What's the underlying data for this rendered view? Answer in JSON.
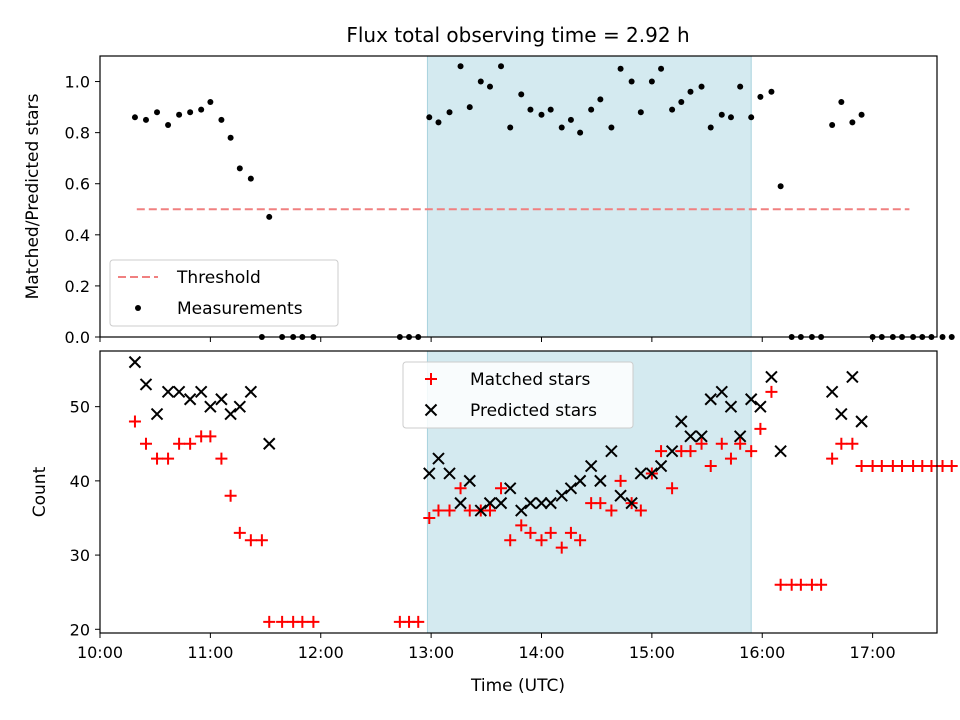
{
  "chart_data": {
    "type": "scatter",
    "title": "Flux total observing time = 2.92 h",
    "xlabel": "Time (UTC)",
    "x_ticks": [
      "10:00",
      "11:00",
      "12:00",
      "13:00",
      "14:00",
      "15:00",
      "16:00",
      "17:00"
    ],
    "x_range": [
      "10:00",
      "17:35"
    ],
    "observing_window": {
      "start": "12:58",
      "end": "15:54",
      "color": "#d4eaf0"
    },
    "panels": [
      {
        "ylabel": "Matched/Predicted stars",
        "ylim": [
          0,
          1.1
        ],
        "y_ticks": [
          "0.0",
          "0.2",
          "0.4",
          "0.6",
          "0.8",
          "1.0"
        ],
        "legend_position": "lower-left",
        "series": [
          {
            "name": "Threshold",
            "style": "dashed-line",
            "color": "#f08080",
            "points": [
              [
                "10:20",
                0.5
              ],
              [
                "17:20",
                0.5
              ]
            ]
          },
          {
            "name": "Measurements",
            "style": "dot",
            "color": "#000000",
            "points": [
              [
                "10:19",
                0.86
              ],
              [
                "10:25",
                0.85
              ],
              [
                "10:31",
                0.88
              ],
              [
                "10:37",
                0.83
              ],
              [
                "10:43",
                0.87
              ],
              [
                "10:49",
                0.88
              ],
              [
                "10:55",
                0.89
              ],
              [
                "11:00",
                0.92
              ],
              [
                "11:06",
                0.85
              ],
              [
                "11:11",
                0.78
              ],
              [
                "11:16",
                0.66
              ],
              [
                "11:22",
                0.62
              ],
              [
                "11:28",
                0.0
              ],
              [
                "11:32",
                0.47
              ],
              [
                "11:39",
                0.0
              ],
              [
                "11:45",
                0.0
              ],
              [
                "11:50",
                0.0
              ],
              [
                "11:56",
                0.0
              ],
              [
                "12:43",
                0.0
              ],
              [
                "12:48",
                0.0
              ],
              [
                "12:53",
                0.0
              ],
              [
                "12:59",
                0.86
              ],
              [
                "13:04",
                0.84
              ],
              [
                "13:10",
                0.88
              ],
              [
                "13:16",
                1.06
              ],
              [
                "13:21",
                0.9
              ],
              [
                "13:27",
                1.0
              ],
              [
                "13:32",
                0.98
              ],
              [
                "13:38",
                1.06
              ],
              [
                "13:43",
                0.82
              ],
              [
                "13:49",
                0.95
              ],
              [
                "13:54",
                0.89
              ],
              [
                "14:00",
                0.87
              ],
              [
                "14:05",
                0.89
              ],
              [
                "14:11",
                0.82
              ],
              [
                "14:16",
                0.85
              ],
              [
                "14:21",
                0.8
              ],
              [
                "14:27",
                0.89
              ],
              [
                "14:32",
                0.93
              ],
              [
                "14:38",
                0.82
              ],
              [
                "14:43",
                1.05
              ],
              [
                "14:49",
                1.0
              ],
              [
                "14:54",
                0.88
              ],
              [
                "15:00",
                1.0
              ],
              [
                "15:05",
                1.05
              ],
              [
                "15:11",
                0.89
              ],
              [
                "15:16",
                0.92
              ],
              [
                "15:21",
                0.96
              ],
              [
                "15:27",
                0.98
              ],
              [
                "15:32",
                0.82
              ],
              [
                "15:38",
                0.87
              ],
              [
                "15:43",
                0.86
              ],
              [
                "15:48",
                0.98
              ],
              [
                "15:54",
                0.86
              ],
              [
                "15:59",
                0.94
              ],
              [
                "16:05",
                0.96
              ],
              [
                "16:10",
                0.59
              ],
              [
                "16:16",
                0.0
              ],
              [
                "16:21",
                0.0
              ],
              [
                "16:27",
                0.0
              ],
              [
                "16:32",
                0.0
              ],
              [
                "16:38",
                0.83
              ],
              [
                "16:43",
                0.92
              ],
              [
                "16:49",
                0.84
              ],
              [
                "16:54",
                0.87
              ],
              [
                "17:00",
                0.0
              ],
              [
                "17:05",
                0.0
              ],
              [
                "17:11",
                0.0
              ],
              [
                "17:16",
                0.0
              ],
              [
                "17:22",
                0.0
              ],
              [
                "17:27",
                0.0
              ],
              [
                "17:32",
                0.0
              ],
              [
                "17:38",
                0.0
              ],
              [
                "17:43",
                0.0
              ]
            ]
          }
        ]
      },
      {
        "ylabel": "Count",
        "ylim": [
          19.5,
          57.5
        ],
        "y_ticks": [
          "20",
          "30",
          "40",
          "50"
        ],
        "legend_position": "upper-center",
        "series": [
          {
            "name": "Matched stars",
            "style": "plus",
            "color": "#ff0000",
            "points": [
              [
                "10:19",
                48
              ],
              [
                "10:25",
                45
              ],
              [
                "10:31",
                43
              ],
              [
                "10:37",
                43
              ],
              [
                "10:43",
                45
              ],
              [
                "10:49",
                45
              ],
              [
                "10:55",
                46
              ],
              [
                "11:00",
                46
              ],
              [
                "11:06",
                43
              ],
              [
                "11:11",
                38
              ],
              [
                "11:16",
                33
              ],
              [
                "11:22",
                32
              ],
              [
                "11:28",
                32
              ],
              [
                "11:32",
                21
              ],
              [
                "11:39",
                21
              ],
              [
                "11:45",
                21
              ],
              [
                "11:50",
                21
              ],
              [
                "11:56",
                21
              ],
              [
                "12:43",
                21
              ],
              [
                "12:48",
                21
              ],
              [
                "12:53",
                21
              ],
              [
                "12:59",
                35
              ],
              [
                "13:04",
                36
              ],
              [
                "13:10",
                36
              ],
              [
                "13:16",
                39
              ],
              [
                "13:21",
                36
              ],
              [
                "13:27",
                36
              ],
              [
                "13:32",
                36
              ],
              [
                "13:38",
                39
              ],
              [
                "13:43",
                32
              ],
              [
                "13:49",
                34
              ],
              [
                "13:54",
                33
              ],
              [
                "14:00",
                32
              ],
              [
                "14:05",
                33
              ],
              [
                "14:11",
                31
              ],
              [
                "14:16",
                33
              ],
              [
                "14:21",
                32
              ],
              [
                "14:27",
                37
              ],
              [
                "14:32",
                37
              ],
              [
                "14:38",
                36
              ],
              [
                "14:43",
                40
              ],
              [
                "14:49",
                37
              ],
              [
                "14:54",
                36
              ],
              [
                "15:00",
                41
              ],
              [
                "15:05",
                44
              ],
              [
                "15:11",
                39
              ],
              [
                "15:16",
                44
              ],
              [
                "15:21",
                44
              ],
              [
                "15:27",
                45
              ],
              [
                "15:32",
                42
              ],
              [
                "15:38",
                45
              ],
              [
                "15:43",
                43
              ],
              [
                "15:48",
                45
              ],
              [
                "15:54",
                44
              ],
              [
                "15:59",
                47
              ],
              [
                "16:05",
                52
              ],
              [
                "16:10",
                26
              ],
              [
                "16:16",
                26
              ],
              [
                "16:21",
                26
              ],
              [
                "16:27",
                26
              ],
              [
                "16:32",
                26
              ],
              [
                "16:38",
                43
              ],
              [
                "16:43",
                45
              ],
              [
                "16:49",
                45
              ],
              [
                "16:54",
                42
              ],
              [
                "17:00",
                42
              ],
              [
                "17:05",
                42
              ],
              [
                "17:11",
                42
              ],
              [
                "17:16",
                42
              ],
              [
                "17:22",
                42
              ],
              [
                "17:27",
                42
              ],
              [
                "17:32",
                42
              ],
              [
                "17:38",
                42
              ],
              [
                "17:43",
                42
              ]
            ]
          },
          {
            "name": "Predicted stars",
            "style": "cross",
            "color": "#000000",
            "points": [
              [
                "10:19",
                56
              ],
              [
                "10:25",
                53
              ],
              [
                "10:31",
                49
              ],
              [
                "10:37",
                52
              ],
              [
                "10:43",
                52
              ],
              [
                "10:49",
                51
              ],
              [
                "10:55",
                52
              ],
              [
                "11:00",
                50
              ],
              [
                "11:06",
                51
              ],
              [
                "11:11",
                49
              ],
              [
                "11:16",
                50
              ],
              [
                "11:22",
                52
              ],
              [
                "11:32",
                45
              ],
              [
                "12:59",
                41
              ],
              [
                "13:04",
                43
              ],
              [
                "13:10",
                41
              ],
              [
                "13:16",
                37
              ],
              [
                "13:21",
                40
              ],
              [
                "13:27",
                36
              ],
              [
                "13:32",
                37
              ],
              [
                "13:38",
                37
              ],
              [
                "13:43",
                39
              ],
              [
                "13:49",
                36
              ],
              [
                "13:54",
                37
              ],
              [
                "14:00",
                37
              ],
              [
                "14:05",
                37
              ],
              [
                "14:11",
                38
              ],
              [
                "14:16",
                39
              ],
              [
                "14:21",
                40
              ],
              [
                "14:27",
                42
              ],
              [
                "14:32",
                40
              ],
              [
                "14:38",
                44
              ],
              [
                "14:43",
                38
              ],
              [
                "14:49",
                37
              ],
              [
                "14:54",
                41
              ],
              [
                "15:00",
                41
              ],
              [
                "15:05",
                42
              ],
              [
                "15:11",
                44
              ],
              [
                "15:16",
                48
              ],
              [
                "15:21",
                46
              ],
              [
                "15:27",
                46
              ],
              [
                "15:32",
                51
              ],
              [
                "15:38",
                52
              ],
              [
                "15:43",
                50
              ],
              [
                "15:48",
                46
              ],
              [
                "15:54",
                51
              ],
              [
                "15:59",
                50
              ],
              [
                "16:05",
                54
              ],
              [
                "16:10",
                44
              ],
              [
                "16:38",
                52
              ],
              [
                "16:43",
                49
              ],
              [
                "16:49",
                54
              ],
              [
                "16:54",
                48
              ]
            ]
          }
        ]
      }
    ]
  }
}
